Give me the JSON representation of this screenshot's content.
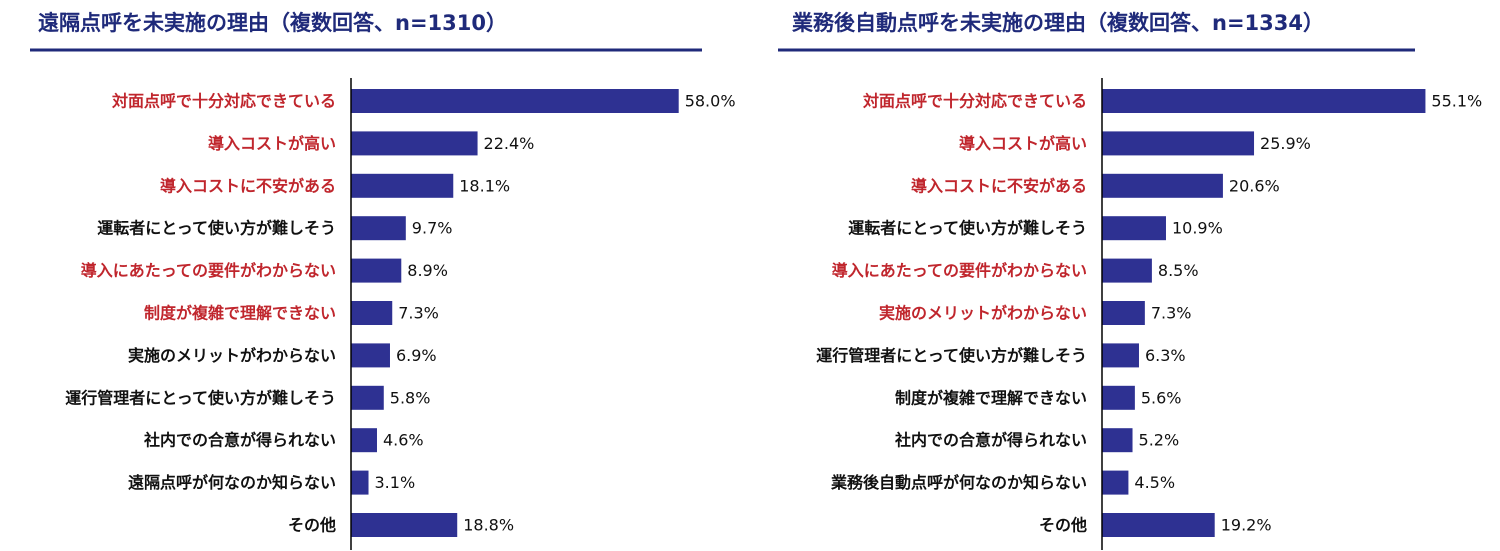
{
  "colors": {
    "bar": "#2e3192",
    "title": "#1f2a7a",
    "highlight": "#c0262d",
    "normal": "#111111",
    "axis": "#000000"
  },
  "chart_data": [
    {
      "type": "bar",
      "orientation": "horizontal",
      "title": "遠隔点呼を未実施の理由（複数回答、n=1310）",
      "xlim": [
        0,
        60
      ],
      "categories": [
        "対面点呼で十分対応できている",
        "導入コストが高い",
        "導入コストに不安がある",
        "運転者にとって使い方が難しそう",
        "導入にあたっての要件がわからない",
        "制度が複雑で理解できない",
        "実施のメリットがわからない",
        "運行管理者にとって使い方が難しそう",
        "社内での合意が得られない",
        "遠隔点呼が何なのか知らない",
        "その他"
      ],
      "values": [
        58.0,
        22.4,
        18.1,
        9.7,
        8.9,
        7.3,
        6.9,
        5.8,
        4.6,
        3.1,
        18.8
      ],
      "value_labels": [
        "58.0%",
        "22.4%",
        "18.1%",
        "9.7%",
        "8.9%",
        "7.3%",
        "6.9%",
        "5.8%",
        "4.6%",
        "3.1%",
        "18.8%"
      ],
      "highlighted": [
        true,
        true,
        true,
        false,
        true,
        true,
        false,
        false,
        false,
        false,
        false
      ]
    },
    {
      "type": "bar",
      "orientation": "horizontal",
      "title": "業務後自動点呼を未実施の理由（複数回答、n=1334）",
      "xlim": [
        0,
        60
      ],
      "categories": [
        "対面点呼で十分対応できている",
        "導入コストが高い",
        "導入コストに不安がある",
        "運転者にとって使い方が難しそう",
        "導入にあたっての要件がわからない",
        "実施のメリットがわからない",
        "運行管理者にとって使い方が難しそう",
        "制度が複雑で理解できない",
        "社内での合意が得られない",
        "業務後自動点呼が何なのか知らない",
        "その他"
      ],
      "values": [
        55.1,
        25.9,
        20.6,
        10.9,
        8.5,
        7.3,
        6.3,
        5.6,
        5.2,
        4.5,
        19.2
      ],
      "value_labels": [
        "55.1%",
        "25.9%",
        "20.6%",
        "10.9%",
        "8.5%",
        "7.3%",
        "6.3%",
        "5.6%",
        "5.2%",
        "4.5%",
        "19.2%"
      ],
      "highlighted": [
        true,
        true,
        true,
        false,
        true,
        true,
        false,
        false,
        false,
        false,
        false
      ]
    }
  ]
}
